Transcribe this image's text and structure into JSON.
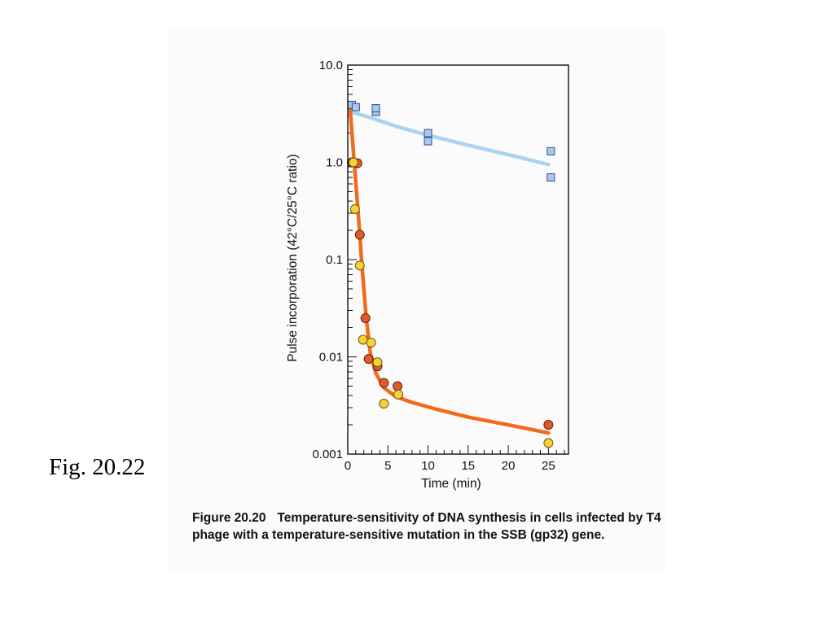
{
  "figure_label": "Fig. 20.22",
  "caption": {
    "label": "Figure 20.20",
    "text": "Temperature-sensitivity of DNA synthesis in cells infected by T4 phage with a temperature-sensitive mutation in the SSB (gp32) gene."
  },
  "chart_data": {
    "type": "scatter",
    "title": "",
    "xlabel": "Time (min)",
    "ylabel": "Pulse incorporation (42°C/25°C ratio)",
    "xlim": [
      0,
      27.5
    ],
    "ylim": [
      0.001,
      10
    ],
    "yscale": "log",
    "grid": false,
    "x_ticks": [
      0,
      5,
      10,
      15,
      20,
      25
    ],
    "x_tick_labels": [
      "0",
      "5",
      "10",
      "15",
      "20",
      "25"
    ],
    "y_ticks": [
      0.001,
      0.01,
      0.1,
      1,
      10
    ],
    "y_tick_labels": [
      "0.001",
      "0.01",
      "0.1",
      "1.0",
      "10.0"
    ],
    "series": [
      {
        "marker": "square",
        "color": "#aac8ea",
        "stroke": "#2b4f8a",
        "points": [
          [
            0.5,
            3.9
          ],
          [
            1.0,
            3.7
          ],
          [
            3.5,
            3.3
          ],
          [
            3.5,
            3.6
          ],
          [
            10,
            2.0
          ],
          [
            10,
            1.65
          ],
          [
            25.3,
            1.3
          ],
          [
            25.3,
            0.7
          ]
        ]
      },
      {
        "marker": "circle",
        "color": "#e05a2b",
        "stroke": "#6b1d06",
        "points": [
          [
            0.5,
            1.0
          ],
          [
            1.2,
            0.98
          ],
          [
            1.5,
            0.18
          ],
          [
            2.2,
            0.025
          ],
          [
            2.6,
            0.0095
          ],
          [
            3.7,
            0.008
          ],
          [
            4.5,
            0.0054
          ],
          [
            6.2,
            0.005
          ],
          [
            25.0,
            0.002
          ]
        ]
      },
      {
        "marker": "circle",
        "color": "#f6d23a",
        "stroke": "#6b5406",
        "points": [
          [
            0.7,
            1.0
          ],
          [
            0.9,
            0.33
          ],
          [
            1.5,
            0.087
          ],
          [
            1.9,
            0.015
          ],
          [
            2.9,
            0.014
          ],
          [
            3.7,
            0.0088
          ],
          [
            4.5,
            0.0033
          ],
          [
            6.3,
            0.0041
          ],
          [
            25.0,
            0.0013
          ]
        ]
      }
    ],
    "curves": [
      {
        "color": "#a8d4f0",
        "points": [
          [
            0.5,
            3.3
          ],
          [
            3,
            2.85
          ],
          [
            6,
            2.35
          ],
          [
            10,
            1.9
          ],
          [
            15,
            1.5
          ],
          [
            20,
            1.2
          ],
          [
            25,
            0.95
          ]
        ]
      },
      {
        "color": "#f26a1b",
        "points": [
          [
            0.3,
            3.5
          ],
          [
            0.8,
            1.0
          ],
          [
            1.3,
            0.3
          ],
          [
            1.8,
            0.08
          ],
          [
            2.3,
            0.025
          ],
          [
            2.8,
            0.011
          ],
          [
            3.5,
            0.0068
          ],
          [
            4.5,
            0.0048
          ],
          [
            6,
            0.0039
          ],
          [
            8,
            0.0034
          ],
          [
            11,
            0.0029
          ],
          [
            15,
            0.0024
          ],
          [
            20,
            0.002
          ],
          [
            25,
            0.00165
          ]
        ]
      }
    ]
  }
}
